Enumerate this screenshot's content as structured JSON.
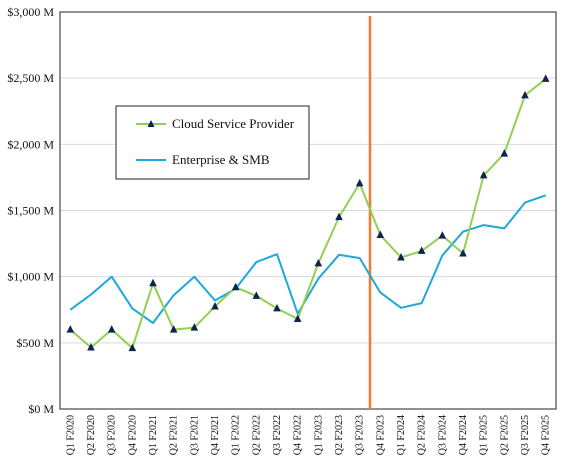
{
  "chart_data": {
    "type": "line",
    "categories": [
      "Q1 F2020",
      "Q2 F2020",
      "Q3 F2020",
      "Q4 F2020",
      "Q1 F2021",
      "Q2 F2021",
      "Q3 F2021",
      "Q4 F2021",
      "Q1 F2022",
      "Q2 F2022",
      "Q3 F2022",
      "Q4 F2022",
      "Q1 F2023",
      "Q2 F2023",
      "Q3 F2023",
      "Q4 F2023",
      "Q1 F2024",
      "Q2 F2024",
      "Q3 F2024",
      "Q4 F2024",
      "Q1 F2025",
      "Q2 F2025",
      "Q3 F2025",
      "Q4 F2025"
    ],
    "series": [
      {
        "name": "Cloud Service Provider",
        "color": "#92d050",
        "marker": "triangle",
        "marker_color": "#0f2350",
        "values": [
          600,
          465,
          600,
          460,
          950,
          600,
          615,
          775,
          920,
          855,
          760,
          680,
          1100,
          1450,
          1705,
          1315,
          1145,
          1195,
          1310,
          1175,
          1765,
          1930,
          2370,
          2495
        ]
      },
      {
        "name": "Enterprise & SMB",
        "color": "#1ea8dc",
        "marker": "none",
        "values": [
          750,
          865,
          1000,
          760,
          650,
          860,
          1000,
          820,
          910,
          1110,
          1170,
          720,
          985,
          1165,
          1140,
          880,
          765,
          800,
          1160,
          1340,
          1390,
          1365,
          1560,
          1615
        ]
      }
    ],
    "y_tick_labels": [
      "$0 M",
      "$500 M",
      "$1,000 M",
      "$1,500 M",
      "$2,000 M",
      "$2,500 M",
      "$3,000 M"
    ],
    "ylim": [
      0,
      3000
    ],
    "y_step": 500,
    "grid": true,
    "legend_placement": "upper-left inside plot",
    "vertical_marker": {
      "between": [
        "Q3 F2023",
        "Q4 F2023"
      ],
      "color": "#ed7d31"
    }
  }
}
